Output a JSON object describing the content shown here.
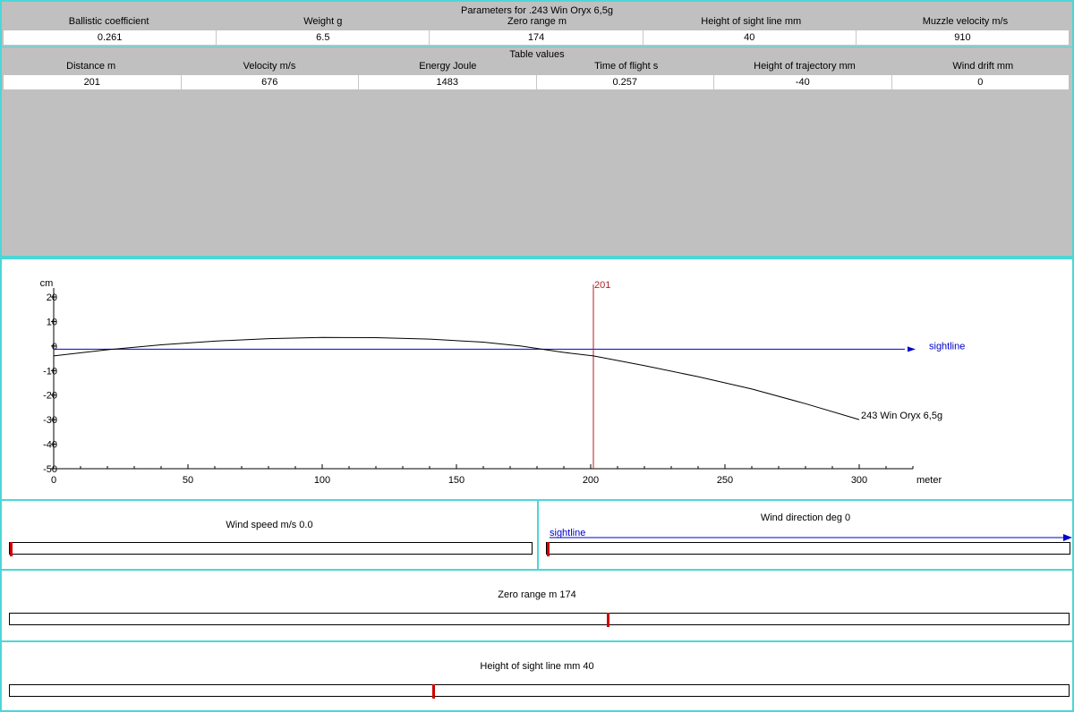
{
  "params": {
    "title": "Parameters for .243 Win Oryx 6,5g",
    "headers": [
      "Ballistic coefficient",
      "Weight g",
      "Zero range m",
      "Height of sight line mm",
      "Muzzle velocity m/s"
    ],
    "values": [
      "0.261",
      "6.5",
      "174",
      "40",
      "910"
    ]
  },
  "table": {
    "title": "Table values",
    "headers": [
      "Distance m",
      "Velocity m/s",
      "Energy Joule",
      "Time of flight s",
      "Height of trajectory mm",
      "Wind drift mm"
    ],
    "values": [
      "201",
      "676",
      "1483",
      "0.257",
      "-40",
      "0"
    ]
  },
  "chart_data": {
    "type": "line",
    "ylabel": "cm",
    "xlabel": "meter",
    "xlim": [
      0,
      320
    ],
    "ylim": [
      -50,
      20
    ],
    "x_ticks": [
      "0",
      "50",
      "100",
      "150",
      "200",
      "250",
      "300"
    ],
    "y_ticks": [
      "20",
      "10",
      "0",
      "-10",
      "-20",
      "-30",
      "-40",
      "-50"
    ],
    "series": [
      {
        "name": "243 Win Oryx 6,5g",
        "x": [
          0,
          20,
          40,
          60,
          80,
          100,
          120,
          140,
          160,
          174,
          190,
          201,
          220,
          240,
          260,
          280,
          300
        ],
        "y": [
          -4,
          -1.5,
          0.5,
          2,
          3,
          3.5,
          3.4,
          2.8,
          1.6,
          0,
          -2.6,
          -4,
          -8,
          -12.5,
          -17.5,
          -23.5,
          -30
        ]
      }
    ],
    "sightline_label": "sightline",
    "marker": {
      "x": 201,
      "label": "201"
    },
    "color": "#000000",
    "sightline_color": "#0000cc",
    "marker_color": "#b22222"
  },
  "wind_speed": {
    "label": "Wind speed m/s 0.0",
    "fraction": 0.0
  },
  "wind_direction": {
    "label": "Wind direction deg 0",
    "sightline_label": "sightline",
    "fraction": 0.0
  },
  "zero_range": {
    "label": "Zero range m 174",
    "fraction": 0.565
  },
  "sight_height": {
    "label": "Height of sight line mm 40",
    "fraction": 0.4
  },
  "colors": {
    "accent": "#4dd6d6",
    "panel": "#c0c0c0",
    "knob": "#cc0000"
  }
}
